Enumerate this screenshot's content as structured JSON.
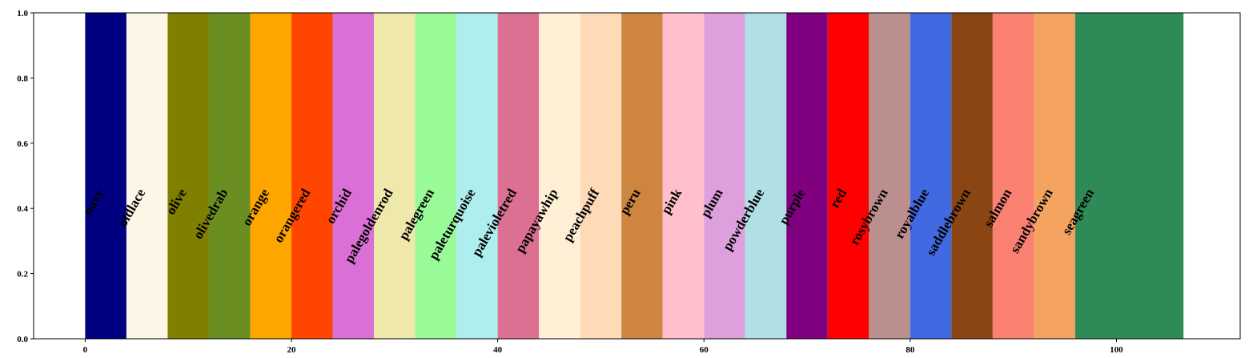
{
  "chart_data": {
    "type": "bar",
    "orientation": "vertical",
    "title": "",
    "xlabel": "",
    "ylabel": "",
    "xlim": [
      -5,
      112
    ],
    "ylim": [
      0,
      1
    ],
    "x_ticks": [
      0,
      20,
      40,
      60,
      80,
      100
    ],
    "y_ticks": [
      0.0,
      0.2,
      0.4,
      0.6,
      0.8,
      1.0
    ],
    "x_tick_labels": [
      "0",
      "20",
      "40",
      "60",
      "80",
      "100"
    ],
    "y_tick_labels": [
      "0.0",
      "0.2",
      "0.4",
      "0.6",
      "0.8",
      "1.0"
    ],
    "grid": false,
    "legend": "none",
    "bar_height": 1.0,
    "bars": [
      {
        "label": "navy",
        "x_start": 0,
        "x_end": 4,
        "color": "#000080"
      },
      {
        "label": "oldlace",
        "x_start": 4,
        "x_end": 8,
        "color": "#fdf5e6"
      },
      {
        "label": "olive",
        "x_start": 8,
        "x_end": 12,
        "color": "#808000"
      },
      {
        "label": "olivedrab",
        "x_start": 12,
        "x_end": 16,
        "color": "#6b8e23"
      },
      {
        "label": "orange",
        "x_start": 16,
        "x_end": 20,
        "color": "#ffa500"
      },
      {
        "label": "orangered",
        "x_start": 20,
        "x_end": 24,
        "color": "#ff4500"
      },
      {
        "label": "orchid",
        "x_start": 24,
        "x_end": 28,
        "color": "#da70d6"
      },
      {
        "label": "palegoldenrod",
        "x_start": 28,
        "x_end": 32,
        "color": "#eee8aa"
      },
      {
        "label": "palegreen",
        "x_start": 32,
        "x_end": 36,
        "color": "#98fb98"
      },
      {
        "label": "paleturquoise",
        "x_start": 36,
        "x_end": 40,
        "color": "#afeeee"
      },
      {
        "label": "palevioletred",
        "x_start": 40,
        "x_end": 44,
        "color": "#db7093"
      },
      {
        "label": "papayawhip",
        "x_start": 44,
        "x_end": 48,
        "color": "#ffefd5"
      },
      {
        "label": "peachpuff",
        "x_start": 48,
        "x_end": 52,
        "color": "#ffdab9"
      },
      {
        "label": "peru",
        "x_start": 52,
        "x_end": 56,
        "color": "#cd853f"
      },
      {
        "label": "pink",
        "x_start": 56,
        "x_end": 60,
        "color": "#ffc0cb"
      },
      {
        "label": "plum",
        "x_start": 60,
        "x_end": 64,
        "color": "#dda0dd"
      },
      {
        "label": "powderblue",
        "x_start": 64,
        "x_end": 68,
        "color": "#b0e0e6"
      },
      {
        "label": "purple",
        "x_start": 68,
        "x_end": 72,
        "color": "#800080"
      },
      {
        "label": "red",
        "x_start": 72,
        "x_end": 76,
        "color": "#ff0000"
      },
      {
        "label": "rosybrown",
        "x_start": 76,
        "x_end": 80,
        "color": "#bc8f8f"
      },
      {
        "label": "royalblue",
        "x_start": 80,
        "x_end": 84,
        "color": "#4169e1"
      },
      {
        "label": "saddlebrown",
        "x_start": 84,
        "x_end": 88,
        "color": "#8b4513"
      },
      {
        "label": "salmon",
        "x_start": 88,
        "x_end": 92,
        "color": "#fa8072"
      },
      {
        "label": "sandybrown",
        "x_start": 92,
        "x_end": 96,
        "color": "#f4a460"
      },
      {
        "label": "seagreen",
        "x_start": 96,
        "x_end": 106.5,
        "color": "#2e8b57"
      }
    ]
  }
}
